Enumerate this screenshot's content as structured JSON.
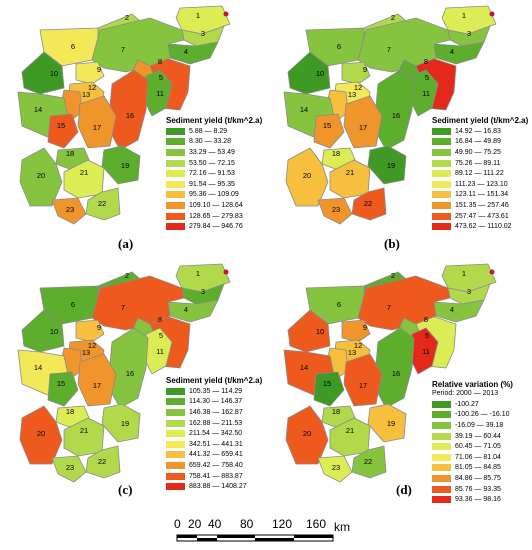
{
  "panels": [
    {
      "label": "(a)",
      "legend": {
        "title": "Sediment yield (t/km^2.a)",
        "subtitle": "",
        "classes": [
          {
            "range": "5.88 — 8.29",
            "color": "#3f9a25"
          },
          {
            "range": "8.30 — 33.28",
            "color": "#5eae2e"
          },
          {
            "range": "33.29 — 53.49",
            "color": "#86c440"
          },
          {
            "range": "53.50 — 72.15",
            "color": "#b2d84b"
          },
          {
            "range": "72.16 — 91.53",
            "color": "#dcec55"
          },
          {
            "range": "91.54 — 95.35",
            "color": "#f3e858"
          },
          {
            "range": "95.36 — 109.09",
            "color": "#f6bf3e"
          },
          {
            "range": "109.10 — 128.64",
            "color": "#f0942c"
          },
          {
            "range": "128.65 — 279.83",
            "color": "#ee5a1e"
          },
          {
            "range": "279.84 — 946.76",
            "color": "#e32a1a"
          }
        ]
      },
      "subbasin_class": [
        5,
        4,
        4,
        2,
        9,
        6,
        3,
        8,
        6,
        1,
        2,
        7,
        8,
        3,
        9,
        9,
        8,
        3,
        2,
        3,
        5,
        4,
        8
      ]
    },
    {
      "label": "(b)",
      "legend": {
        "title": "Sediment yield (t/km^2.a)",
        "subtitle": "",
        "classes": [
          {
            "range": "14.92 — 16.83",
            "color": "#3f9a25"
          },
          {
            "range": "16.84 — 49.89",
            "color": "#5eae2e"
          },
          {
            "range": "49.90 — 75.25",
            "color": "#86c440"
          },
          {
            "range": "75.26 — 89.11",
            "color": "#b2d84b"
          },
          {
            "range": "89.12 — 111.22",
            "color": "#dcec55"
          },
          {
            "range": "111.23 — 123.10",
            "color": "#f3e858"
          },
          {
            "range": "123.11 — 151.34",
            "color": "#f6bf3e"
          },
          {
            "range": "151.35 — 257.46",
            "color": "#f0942c"
          },
          {
            "range": "257.47 — 473.61",
            "color": "#ee5a1e"
          },
          {
            "range": "473.62 — 1110.02",
            "color": "#e32a1a"
          }
        ]
      },
      "subbasin_class": [
        5,
        4,
        3,
        2,
        10,
        3,
        3,
        2,
        4,
        1,
        2,
        6,
        7,
        3,
        8,
        2,
        8,
        5,
        1,
        7,
        7,
        9,
        8
      ]
    },
    {
      "label": "(c)",
      "legend": {
        "title": "Sediment yield (t/km^2.a)",
        "subtitle": "",
        "classes": [
          {
            "range": "105.35 — 114.29",
            "color": "#3f9a25"
          },
          {
            "range": "114.30 — 146.37",
            "color": "#5eae2e"
          },
          {
            "range": "146.38 — 162.87",
            "color": "#86c440"
          },
          {
            "range": "162.88 — 211.53",
            "color": "#b2d84b"
          },
          {
            "range": "211.54 — 342.50",
            "color": "#dcec55"
          },
          {
            "range": "342.51 — 441.31",
            "color": "#f3e858"
          },
          {
            "range": "441.32 — 659.41",
            "color": "#f6bf3e"
          },
          {
            "range": "659.42 — 758.40",
            "color": "#f0942c"
          },
          {
            "range": "758.41 — 883.87",
            "color": "#ee5a1e"
          },
          {
            "range": "883.88 — 1408.27",
            "color": "#e32a1a"
          }
        ]
      },
      "subbasin_class": [
        4,
        2,
        2,
        3,
        9,
        2,
        9,
        3,
        7,
        2,
        5,
        8,
        8,
        6,
        2,
        3,
        8,
        5,
        4,
        9,
        4,
        4,
        4
      ]
    },
    {
      "label": "(d)",
      "legend": {
        "title": "Relative variation (%)",
        "subtitle": "Period: 2000 — 2013",
        "classes": [
          {
            "range": "-100.27",
            "color": "#3f9a25"
          },
          {
            "range": "-100.26 — -16.10",
            "color": "#5eae2e"
          },
          {
            "range": "-16.09 — 39.18",
            "color": "#86c440"
          },
          {
            "range": "39.19 — 60.44",
            "color": "#b2d84b"
          },
          {
            "range": "60.45 — 71.05",
            "color": "#dcec55"
          },
          {
            "range": "71.06 — 81.04",
            "color": "#f3e858"
          },
          {
            "range": "81.05 — 84.85",
            "color": "#f6bf3e"
          },
          {
            "range": "84.86 — 85.75",
            "color": "#f0942c"
          },
          {
            "range": "85.76 — 93.35",
            "color": "#ee5a1e"
          },
          {
            "range": "93.36 — 98.16",
            "color": "#e32a1a"
          }
        ]
      },
      "subbasin_class": [
        4,
        2,
        4,
        3,
        5,
        3,
        9,
        3,
        8,
        9,
        10,
        7,
        7,
        9,
        1,
        2,
        9,
        4,
        7,
        9,
        4,
        3,
        5
      ]
    }
  ],
  "subbasin_numbers": [
    "1",
    "2",
    "3",
    "4",
    "5",
    "6",
    "7",
    "8",
    "9",
    "10",
    "11",
    "12",
    "13",
    "14",
    "15",
    "16",
    "17",
    "18",
    "19",
    "20",
    "21",
    "22",
    "23"
  ],
  "outlet_color": "#c4162a",
  "boundary_color": "#8a8a8a",
  "scale_bar": {
    "ticks": [
      "0",
      "20",
      "40",
      "80",
      "120",
      "160"
    ],
    "unit": "km"
  }
}
